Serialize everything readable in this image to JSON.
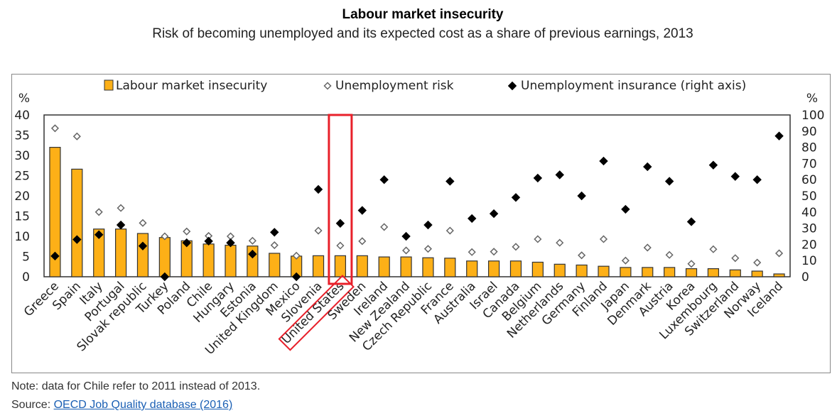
{
  "title": "Labour market insecurity",
  "subtitle": "Risk of becoming unemployed and its expected cost as a share of previous earnings, 2013",
  "note": "Note: data for Chile refer to 2011 instead of 2013.",
  "source_label": "Source:",
  "source_link": "OECD Job Quality database (2016)",
  "highlighted_category": "United States",
  "colors": {
    "bar": "#FDB017",
    "highlight": "#E8202A"
  },
  "chart_data": {
    "type": "bar",
    "title": "Labour market insecurity",
    "ylabel": "%",
    "y2label": "%",
    "ylim": [
      0,
      40
    ],
    "y2lim": [
      0,
      100
    ],
    "yticks": [
      "0",
      "5",
      "10",
      "15",
      "20",
      "25",
      "30",
      "35",
      "40"
    ],
    "y2ticks": [
      "0",
      "10",
      "20",
      "30",
      "40",
      "50",
      "60",
      "70",
      "80",
      "90",
      "100"
    ],
    "legend": [
      "Labour market insecurity",
      "Unemployment risk",
      "Unemployment insurance (right axis)"
    ],
    "legend_position": "top",
    "categories": [
      "Greece",
      "Spain",
      "Italy",
      "Portugal",
      "Slovak republic",
      "Turkey",
      "Poland",
      "Chile",
      "Hungary",
      "Estonia",
      "United Kingdom",
      "Mexico",
      "Slovenia",
      "United States",
      "Sweden",
      "Ireland",
      "New Zealand",
      "Czech Republic",
      "France",
      "Australia",
      "Israel",
      "Canada",
      "Belgium",
      "Netherlands",
      "Germany",
      "Finland",
      "Japan",
      "Denmark",
      "Austria",
      "Korea",
      "Luxembourg",
      "Switzerland",
      "Norway",
      "Iceland"
    ],
    "series": [
      {
        "name": "Labour market insecurity",
        "axis": "left",
        "type": "bar",
        "values": [
          32,
          26.6,
          11.8,
          11.8,
          10.7,
          9.7,
          8.9,
          8.1,
          7.8,
          7.6,
          5.8,
          5.1,
          5.2,
          5.2,
          5.2,
          4.9,
          4.9,
          4.7,
          4.6,
          3.9,
          3.9,
          3.9,
          3.6,
          3.1,
          2.9,
          2.6,
          2.3,
          2.3,
          2.3,
          2.0,
          2.0,
          1.7,
          1.4,
          0.7
        ]
      },
      {
        "name": "Unemployment risk",
        "axis": "left",
        "type": "scatter",
        "values": [
          36.7,
          34.7,
          16,
          17,
          13.3,
          10,
          11.2,
          10.1,
          10,
          8.9,
          7.8,
          5.2,
          11.4,
          7.7,
          8.8,
          12.3,
          6.5,
          6.9,
          11.4,
          6.1,
          6.2,
          7.4,
          9.3,
          8.4,
          5.3,
          9.3,
          4,
          7.2,
          5.4,
          3.2,
          6.8,
          4.6,
          3.5,
          5.8
        ]
      },
      {
        "name": "Unemployment insurance (right axis)",
        "axis": "right",
        "type": "scatter",
        "values": [
          12.8,
          23,
          26,
          32,
          19,
          0,
          21,
          22,
          21,
          14,
          27.5,
          0,
          54,
          33,
          41,
          60,
          25,
          32,
          59,
          36,
          39,
          49,
          61,
          63,
          50,
          71.5,
          41.7,
          68,
          59,
          34,
          69,
          62,
          60,
          87
        ]
      }
    ]
  }
}
